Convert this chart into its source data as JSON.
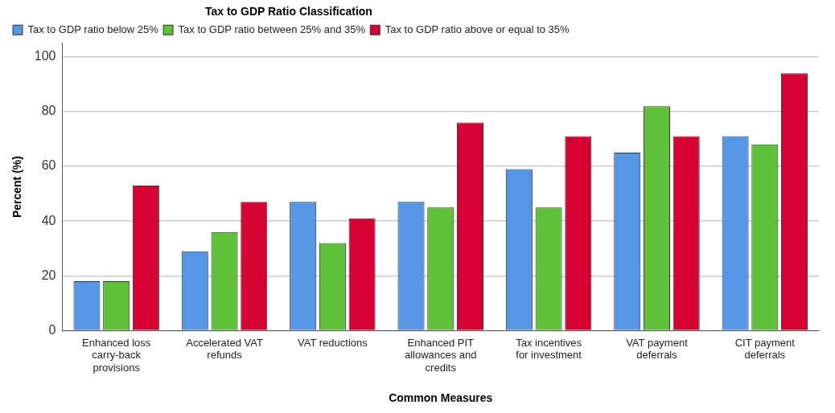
{
  "chart_data": {
    "type": "bar",
    "xlabel": "Common Measures",
    "ylabel": "Percent (%)",
    "legend_title": "Tax to GDP Ratio Classification",
    "categories": [
      "Enhanced loss carry-back provisions",
      "Accelerated VAT refunds",
      "VAT reductions",
      "Enhanced PIT allowances and credits",
      "Tax incentives for investment",
      "VAT payment deferrals",
      "CIT payment deferrals"
    ],
    "series": [
      {
        "name": "Tax to GDP ratio below 25%",
        "color": "#5596e6",
        "values": [
          18,
          29,
          47,
          47,
          59,
          65,
          71
        ]
      },
      {
        "name": "Tax to GDP ratio between 25% and 35%",
        "color": "#5ec138",
        "values": [
          18,
          36,
          32,
          45,
          45,
          82,
          68
        ]
      },
      {
        "name": "Tax to GDP ratio above or equal to 35%",
        "color": "#d60032",
        "values": [
          53,
          47,
          41,
          76,
          71,
          71,
          94
        ]
      }
    ],
    "ylim": [
      0,
      105
    ],
    "yticks": [
      0,
      20,
      40,
      60,
      80,
      100
    ],
    "grid": "y",
    "legend": "top left"
  }
}
